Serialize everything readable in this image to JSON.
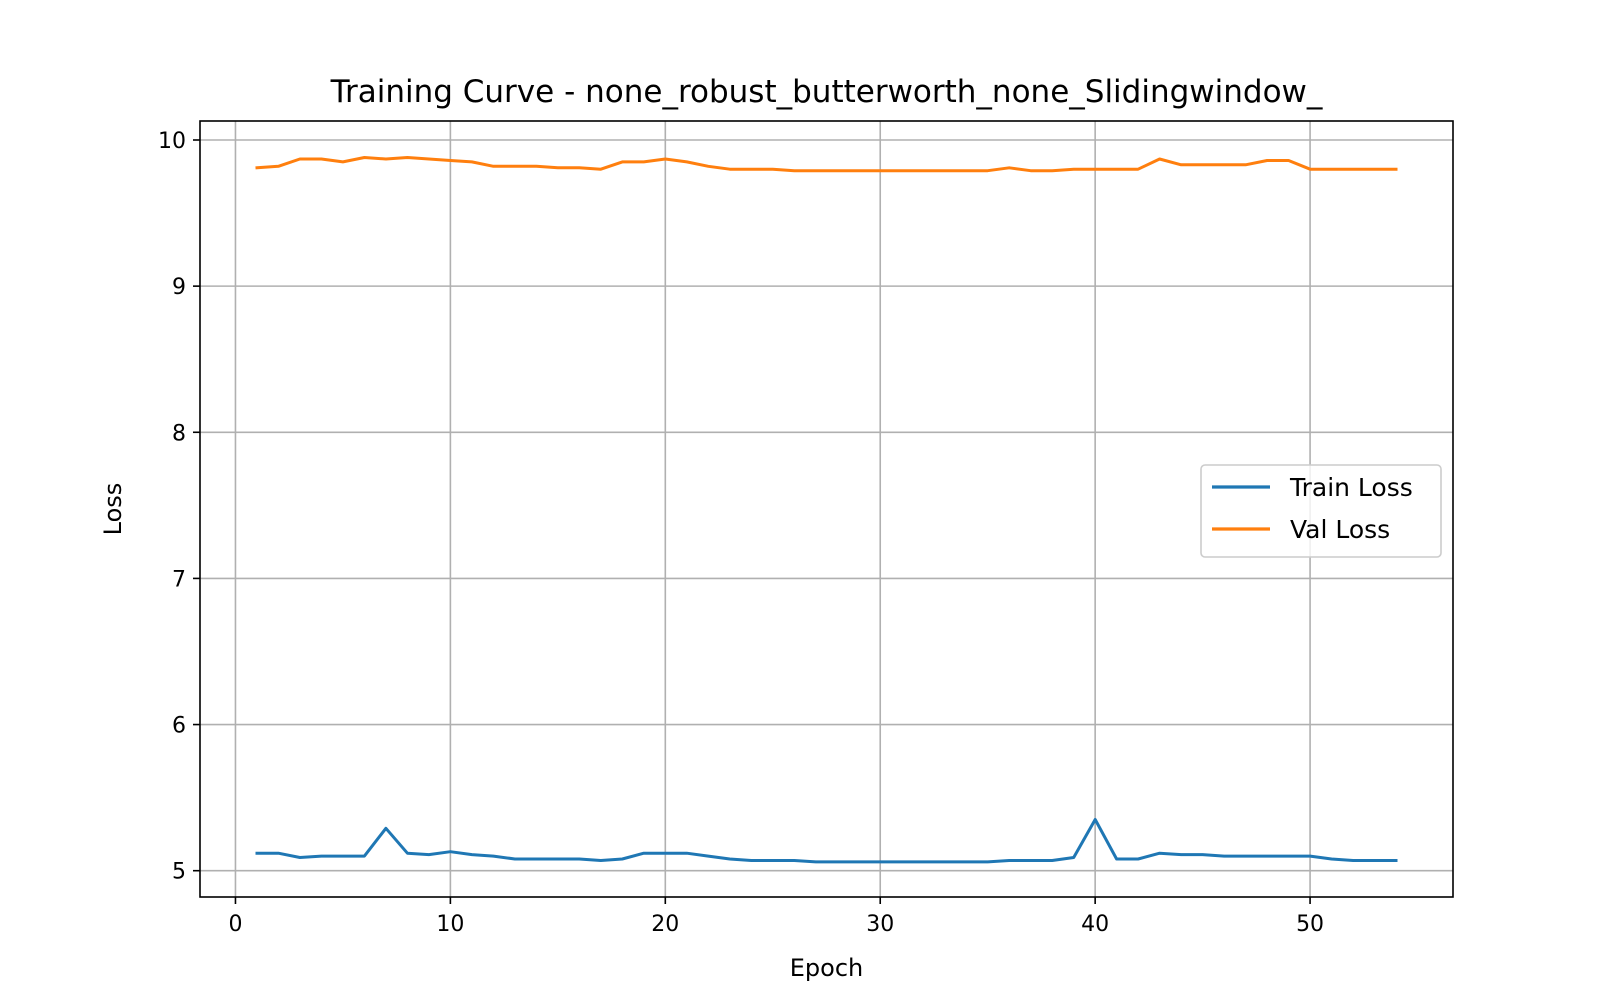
{
  "chart_data": {
    "type": "line",
    "title": "Training Curve - none_robust_butterworth_none_Slidingwindow_",
    "xlabel": "Epoch",
    "ylabel": "Loss",
    "xlim": [
      -1.65,
      56.65
    ],
    "ylim": [
      4.82,
      10.13
    ],
    "xticks": [
      0,
      10,
      20,
      30,
      40,
      50
    ],
    "yticks": [
      5,
      6,
      7,
      8,
      9,
      10
    ],
    "grid": true,
    "legend_position": "center-right",
    "x": [
      1,
      2,
      3,
      4,
      5,
      6,
      7,
      8,
      9,
      10,
      11,
      12,
      13,
      14,
      15,
      16,
      17,
      18,
      19,
      20,
      21,
      22,
      23,
      24,
      25,
      26,
      27,
      28,
      29,
      30,
      31,
      32,
      33,
      34,
      35,
      36,
      37,
      38,
      39,
      40,
      41,
      42,
      43,
      44,
      45,
      46,
      47,
      48,
      49,
      50,
      51,
      52,
      53,
      54
    ],
    "series": [
      {
        "name": "Train Loss",
        "color": "#1f77b4",
        "values": [
          5.12,
          5.12,
          5.09,
          5.1,
          5.1,
          5.1,
          5.29,
          5.12,
          5.11,
          5.13,
          5.11,
          5.1,
          5.08,
          5.08,
          5.08,
          5.08,
          5.07,
          5.08,
          5.12,
          5.12,
          5.12,
          5.1,
          5.08,
          5.07,
          5.07,
          5.07,
          5.06,
          5.06,
          5.06,
          5.06,
          5.06,
          5.06,
          5.06,
          5.06,
          5.06,
          5.07,
          5.07,
          5.07,
          5.09,
          5.35,
          5.08,
          5.08,
          5.12,
          5.11,
          5.11,
          5.1,
          5.1,
          5.1,
          5.1,
          5.1,
          5.08,
          5.07,
          5.07,
          5.07
        ]
      },
      {
        "name": "Val Loss",
        "color": "#ff7f0e",
        "values": [
          9.81,
          9.82,
          9.87,
          9.87,
          9.85,
          9.88,
          9.87,
          9.88,
          9.87,
          9.86,
          9.85,
          9.82,
          9.82,
          9.82,
          9.81,
          9.81,
          9.8,
          9.85,
          9.85,
          9.87,
          9.85,
          9.82,
          9.8,
          9.8,
          9.8,
          9.79,
          9.79,
          9.79,
          9.79,
          9.79,
          9.79,
          9.79,
          9.79,
          9.79,
          9.79,
          9.81,
          9.79,
          9.79,
          9.8,
          9.8,
          9.8,
          9.8,
          9.87,
          9.83,
          9.83,
          9.83,
          9.83,
          9.86,
          9.86,
          9.8,
          9.8,
          9.8,
          9.8,
          9.8
        ]
      }
    ]
  }
}
